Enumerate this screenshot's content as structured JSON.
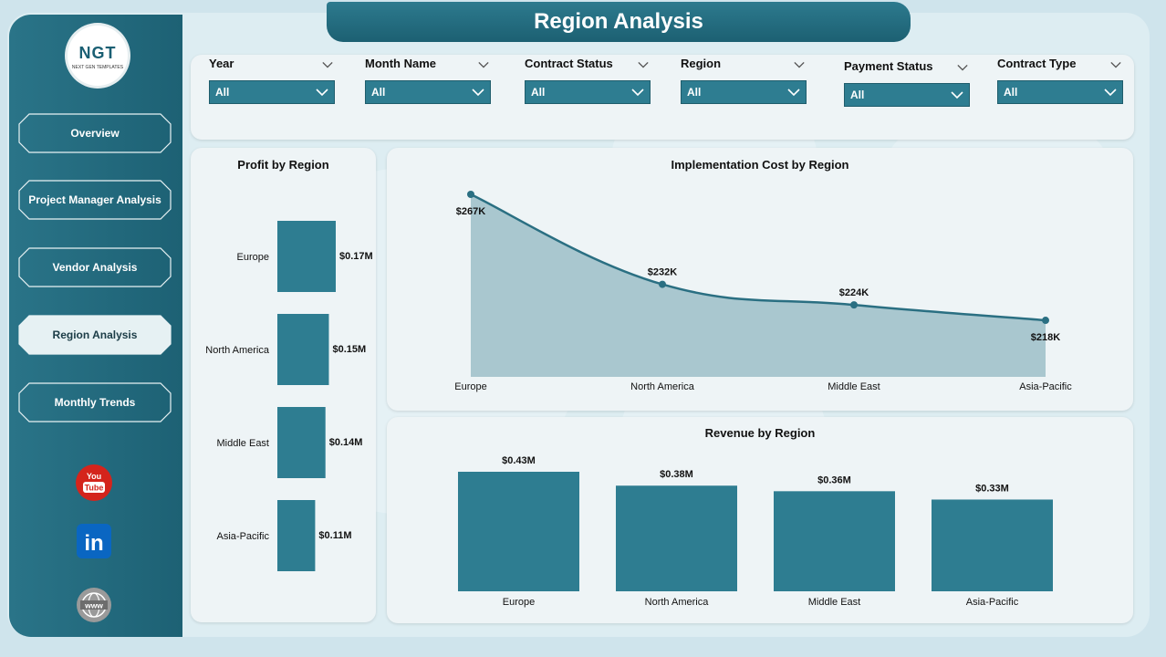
{
  "header": {
    "title": "Region Analysis"
  },
  "logo": {
    "mark": "NGT",
    "tagline": "NEXT GEN TEMPLATES"
  },
  "sidebar": {
    "items": [
      {
        "label": "Overview",
        "active": false
      },
      {
        "label": "Project Manager Analysis",
        "active": false
      },
      {
        "label": "Vendor Analysis",
        "active": false
      },
      {
        "label": "Region Analysis",
        "active": true
      },
      {
        "label": "Monthly Trends",
        "active": false
      }
    ],
    "social": [
      {
        "icon": "youtube-icon",
        "text": "You Tube",
        "color": "#d4241c"
      },
      {
        "icon": "linkedin-icon",
        "text": "in",
        "color": "#0a66c2"
      },
      {
        "icon": "www-globe-icon",
        "text": "www",
        "color": "#8a8a8a"
      }
    ]
  },
  "filters": [
    {
      "label": "Year",
      "value": "All"
    },
    {
      "label": "Month Name",
      "value": "All"
    },
    {
      "label": "Contract Status",
      "value": "All"
    },
    {
      "label": "Region",
      "value": "All"
    },
    {
      "label": "Payment Status",
      "value": "All"
    },
    {
      "label": "Contract Type",
      "value": "All"
    }
  ],
  "colors": {
    "accent": "#2e7d91",
    "area_fill": "#a9c7cf",
    "line": "#2a6f82"
  },
  "chart_data": [
    {
      "type": "bar",
      "orientation": "horizontal",
      "title": "Profit by Region",
      "categories": [
        "Europe",
        "North America",
        "Middle East",
        "Asia-Pacific"
      ],
      "values": [
        0.17,
        0.15,
        0.14,
        0.11
      ],
      "labels": [
        "$0.17M",
        "$0.15M",
        "$0.14M",
        "$0.11M"
      ],
      "unit": "$M"
    },
    {
      "type": "area",
      "title": "Implementation Cost by Region",
      "categories": [
        "Europe",
        "North America",
        "Middle East",
        "Asia-Pacific"
      ],
      "values": [
        267,
        232,
        224,
        218
      ],
      "labels": [
        "$267K",
        "$232K",
        "$224K",
        "$218K"
      ],
      "unit": "$K"
    },
    {
      "type": "bar",
      "title": "Revenue by Region",
      "categories": [
        "Europe",
        "North America",
        "Middle East",
        "Asia-Pacific"
      ],
      "values": [
        0.43,
        0.38,
        0.36,
        0.33
      ],
      "labels": [
        "$0.43M",
        "$0.38M",
        "$0.36M",
        "$0.33M"
      ],
      "unit": "$M"
    }
  ]
}
